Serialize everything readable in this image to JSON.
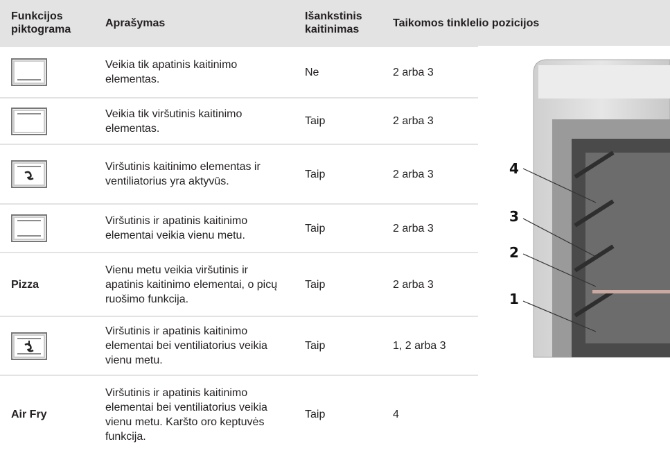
{
  "header": [
    "Funkcijos piktograma",
    "Aprašymas",
    "Išankstinis kaitinimas",
    "Taikomos tinklelio pozicijos"
  ],
  "rows": [
    {
      "icon": "bottom",
      "description": "Veikia tik apatinis kaitinimo elementas.",
      "preheat": "Ne",
      "positions": "2 arba 3"
    },
    {
      "icon": "top",
      "description": "Veikia tik viršutinis kaitinimo elementas.",
      "preheat": "Taip",
      "positions": "2 arba 3"
    },
    {
      "icon": "top-fan",
      "description": "Viršutinis kaitinimo elementas ir ventiliatorius yra aktyvūs.",
      "preheat": "Taip",
      "positions": "2 arba 3"
    },
    {
      "icon": "top-bottom",
      "description": "Viršutinis ir apatinis kaitinimo elementai veikia vienu metu.",
      "preheat": "Taip",
      "positions": "2 arba 3"
    },
    {
      "function": "Pizza",
      "description": "Vienu metu veikia viršutinis ir apatinis kaitinimo elementai, o picų ruošimo funkcija.",
      "preheat": "Taip",
      "positions": "2 arba 3"
    },
    {
      "icon": "top-bottom-fan",
      "description": "Viršutinis ir apatinis kaitinimo elementai bei ventiliatorius veikia vienu metu.",
      "preheat": "Taip",
      "positions": "1, 2 arba 3"
    },
    {
      "function": "Air Fry",
      "description": "Viršutinis ir apatinis kaitinimo elementai bei ventiliatorius veikia vienu metu. Karšto oro keptuvės funkcija.",
      "preheat": "Taip",
      "positions": "4"
    }
  ],
  "oven": {
    "labels": [
      "4",
      "3",
      "2",
      "1"
    ]
  }
}
